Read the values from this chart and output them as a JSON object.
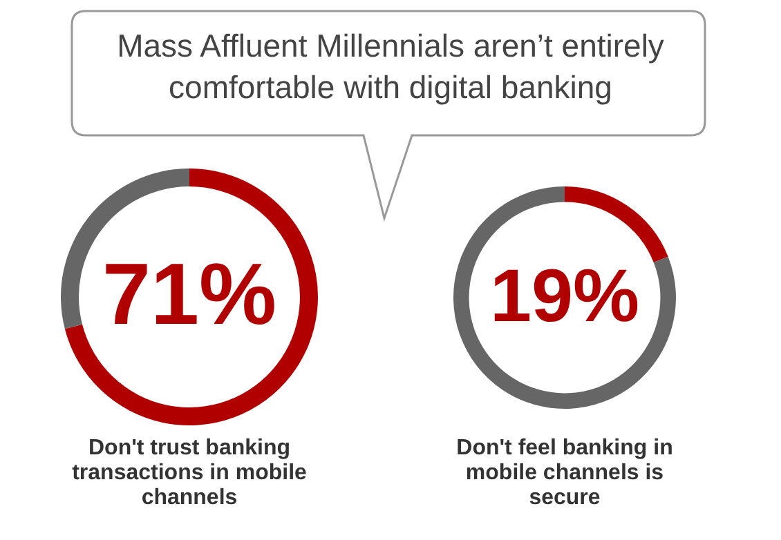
{
  "chart_data": [
    {
      "type": "other",
      "title": "Mass Affluent Millennials aren’t entirely comfortable with digital banking"
    },
    {
      "type": "donut",
      "xlabel": "Don't trust banking transactions in mobile channels",
      "categories": [
        null,
        null
      ],
      "values": [
        71,
        29
      ],
      "colors": [
        "#b00000",
        "#666666"
      ],
      "value_labels": [
        "71%",
        null
      ]
    },
    {
      "type": "donut",
      "xlabel": "Don't feel banking in mobile channels is secure",
      "categories": [
        null,
        null
      ],
      "values": [
        19,
        81
      ],
      "colors": [
        "#b00000",
        "#666666"
      ],
      "value_labels": [
        "19%",
        null
      ]
    }
  ]
}
